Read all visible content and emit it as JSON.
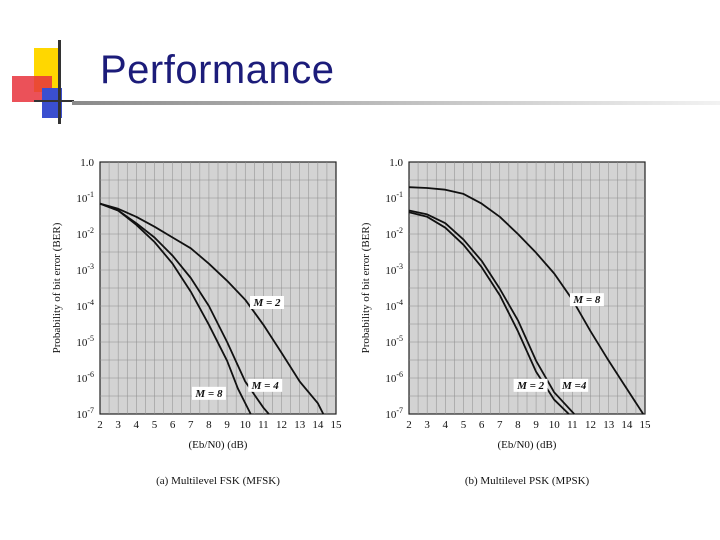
{
  "slide": {
    "title": "Performance",
    "colors": {
      "title": "#1c1c7a",
      "yellow": "#ffd700",
      "red": "#e8323c",
      "blue": "#3a4fd0",
      "panel": "#d3d3d3"
    }
  },
  "chart_data": [
    {
      "type": "line",
      "caption": "(a) Multilevel FSK (MFSK)",
      "xlabel": "(Eb/N0) (dB)",
      "ylabel": "Probability of bit error (BER)",
      "log_y": true,
      "grid": true,
      "xlim": [
        2,
        15
      ],
      "x_ticks": [
        "2",
        "3",
        "4",
        "5",
        "6",
        "7",
        "8",
        "9",
        "10",
        "11",
        "12",
        "13",
        "14",
        "15"
      ],
      "y_ticks": [
        {
          "base": "1.0",
          "exp": "",
          "v": 0
        },
        {
          "base": "10",
          "exp": "-1",
          "v": -1
        },
        {
          "base": "10",
          "exp": "-2",
          "v": -2
        },
        {
          "base": "10",
          "exp": "-3",
          "v": -3
        },
        {
          "base": "10",
          "exp": "-4",
          "v": -4
        },
        {
          "base": "10",
          "exp": "-5",
          "v": -5
        },
        {
          "base": "10",
          "exp": "-6",
          "v": -6
        },
        {
          "base": "10",
          "exp": "-7",
          "v": -7
        }
      ],
      "series": [
        {
          "name": "M = 2",
          "x": [
            2,
            3,
            4,
            5,
            6,
            7,
            8,
            9,
            10,
            11,
            12,
            13,
            14,
            14.3
          ],
          "y": [
            0.07,
            0.05,
            0.03,
            0.016,
            0.008,
            0.004,
            0.0015,
            0.0005,
            0.00015,
            3e-05,
            5e-06,
            8e-07,
            2e-07,
            1e-07
          ]
        },
        {
          "name": "M = 4",
          "x": [
            2,
            3,
            4,
            5,
            6,
            7,
            8,
            9,
            10,
            11,
            11.3
          ],
          "y": [
            0.07,
            0.045,
            0.02,
            0.008,
            0.0025,
            0.0006,
            0.0001,
            1e-05,
            8e-07,
            1.5e-07,
            1e-07
          ]
        },
        {
          "name": "M = 8",
          "x": [
            2,
            3,
            4,
            5,
            6,
            7,
            8,
            9,
            9.6,
            10.3
          ],
          "y": [
            0.07,
            0.045,
            0.018,
            0.006,
            0.0015,
            0.00025,
            3e-05,
            3e-06,
            5e-07,
            1e-07
          ]
        }
      ],
      "labels": [
        {
          "text": "M = 2",
          "x": 11.2,
          "y": 0.0001
        },
        {
          "text": "M = 4",
          "x": 11.1,
          "y": 5e-07
        },
        {
          "text": "M = 8",
          "x": 8,
          "y": 3e-07
        }
      ]
    },
    {
      "type": "line",
      "caption": "(b) Multilevel PSK (MPSK)",
      "xlabel": "(Eb/N0) (dB)",
      "ylabel": "Probability of bit error (BER)",
      "log_y": true,
      "grid": true,
      "xlim": [
        2,
        15
      ],
      "x_ticks": [
        "2",
        "3",
        "4",
        "5",
        "6",
        "7",
        "8",
        "9",
        "10",
        "11",
        "12",
        "13",
        "14",
        "15"
      ],
      "y_ticks": [
        {
          "base": "1.0",
          "exp": "",
          "v": 0
        },
        {
          "base": "10",
          "exp": "-1",
          "v": -1
        },
        {
          "base": "10",
          "exp": "-2",
          "v": -2
        },
        {
          "base": "10",
          "exp": "-3",
          "v": -3
        },
        {
          "base": "10",
          "exp": "-4",
          "v": -4
        },
        {
          "base": "10",
          "exp": "-5",
          "v": -5
        },
        {
          "base": "10",
          "exp": "-6",
          "v": -6
        },
        {
          "base": "10",
          "exp": "-7",
          "v": -7
        }
      ],
      "series": [
        {
          "name": "M = 8",
          "x": [
            2,
            3,
            4,
            5,
            6,
            7,
            8,
            9,
            10,
            11,
            12,
            13,
            14,
            14.9
          ],
          "y": [
            0.2,
            0.19,
            0.17,
            0.13,
            0.07,
            0.03,
            0.01,
            0.003,
            0.0008,
            0.00015,
            2e-05,
            3e-06,
            5e-07,
            1e-07
          ]
        },
        {
          "name": "M = 2",
          "x": [
            2,
            3,
            4,
            5,
            6,
            7,
            8,
            9,
            10,
            10.8
          ],
          "y": [
            0.04,
            0.03,
            0.015,
            0.005,
            0.0012,
            0.0002,
            2e-05,
            1.5e-06,
            2.5e-07,
            1e-07
          ]
        },
        {
          "name": "M =4",
          "x": [
            2,
            3,
            4,
            5,
            6,
            7,
            8,
            9,
            10,
            11.1
          ],
          "y": [
            0.045,
            0.035,
            0.02,
            0.007,
            0.0018,
            0.0003,
            4e-05,
            3e-06,
            4e-07,
            1e-07
          ]
        }
      ],
      "labels": [
        {
          "text": "M = 8",
          "x": 11.8,
          "y": 0.00012
        },
        {
          "text": "M = 2",
          "x": 8.7,
          "y": 5e-07
        },
        {
          "text": "M =4",
          "x": 11.1,
          "y": 5e-07
        }
      ]
    }
  ]
}
